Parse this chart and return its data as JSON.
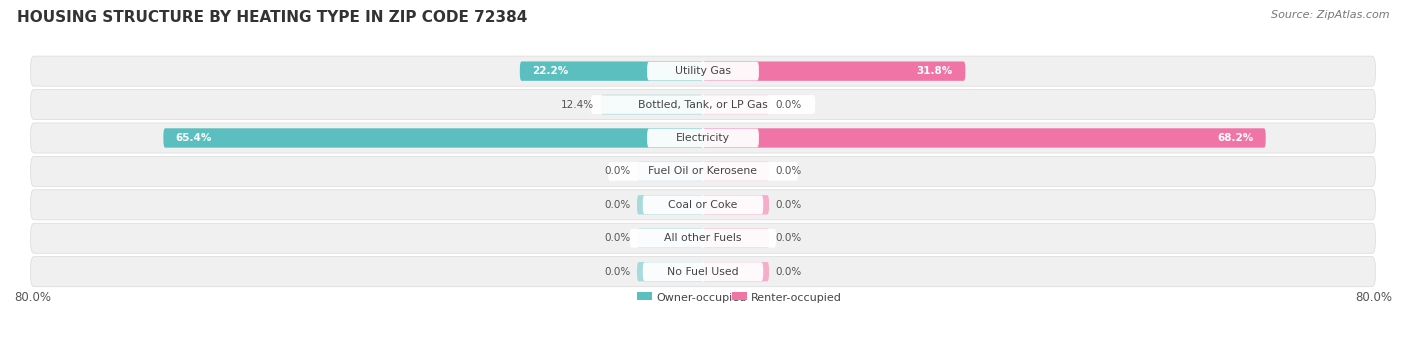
{
  "title": "HOUSING STRUCTURE BY HEATING TYPE IN ZIP CODE 72384",
  "source": "Source: ZipAtlas.com",
  "categories": [
    "Utility Gas",
    "Bottled, Tank, or LP Gas",
    "Electricity",
    "Fuel Oil or Kerosene",
    "Coal or Coke",
    "All other Fuels",
    "No Fuel Used"
  ],
  "owner_values": [
    22.2,
    12.4,
    65.4,
    0.0,
    0.0,
    0.0,
    0.0
  ],
  "renter_values": [
    31.8,
    0.0,
    68.2,
    0.0,
    0.0,
    0.0,
    0.0
  ],
  "owner_color": "#5BBFBF",
  "owner_color_light": "#A8DADB",
  "renter_color": "#F075A6",
  "renter_color_light": "#F5AECA",
  "row_bg": "#F0F0F0",
  "row_border": "#CCCCCC",
  "title_color": "#444444",
  "label_dark": "#333333",
  "label_gray": "#666666",
  "max_value": 80.0,
  "stub_size": 8.0,
  "legend_owner": "Owner-occupied",
  "legend_renter": "Renter-occupied"
}
